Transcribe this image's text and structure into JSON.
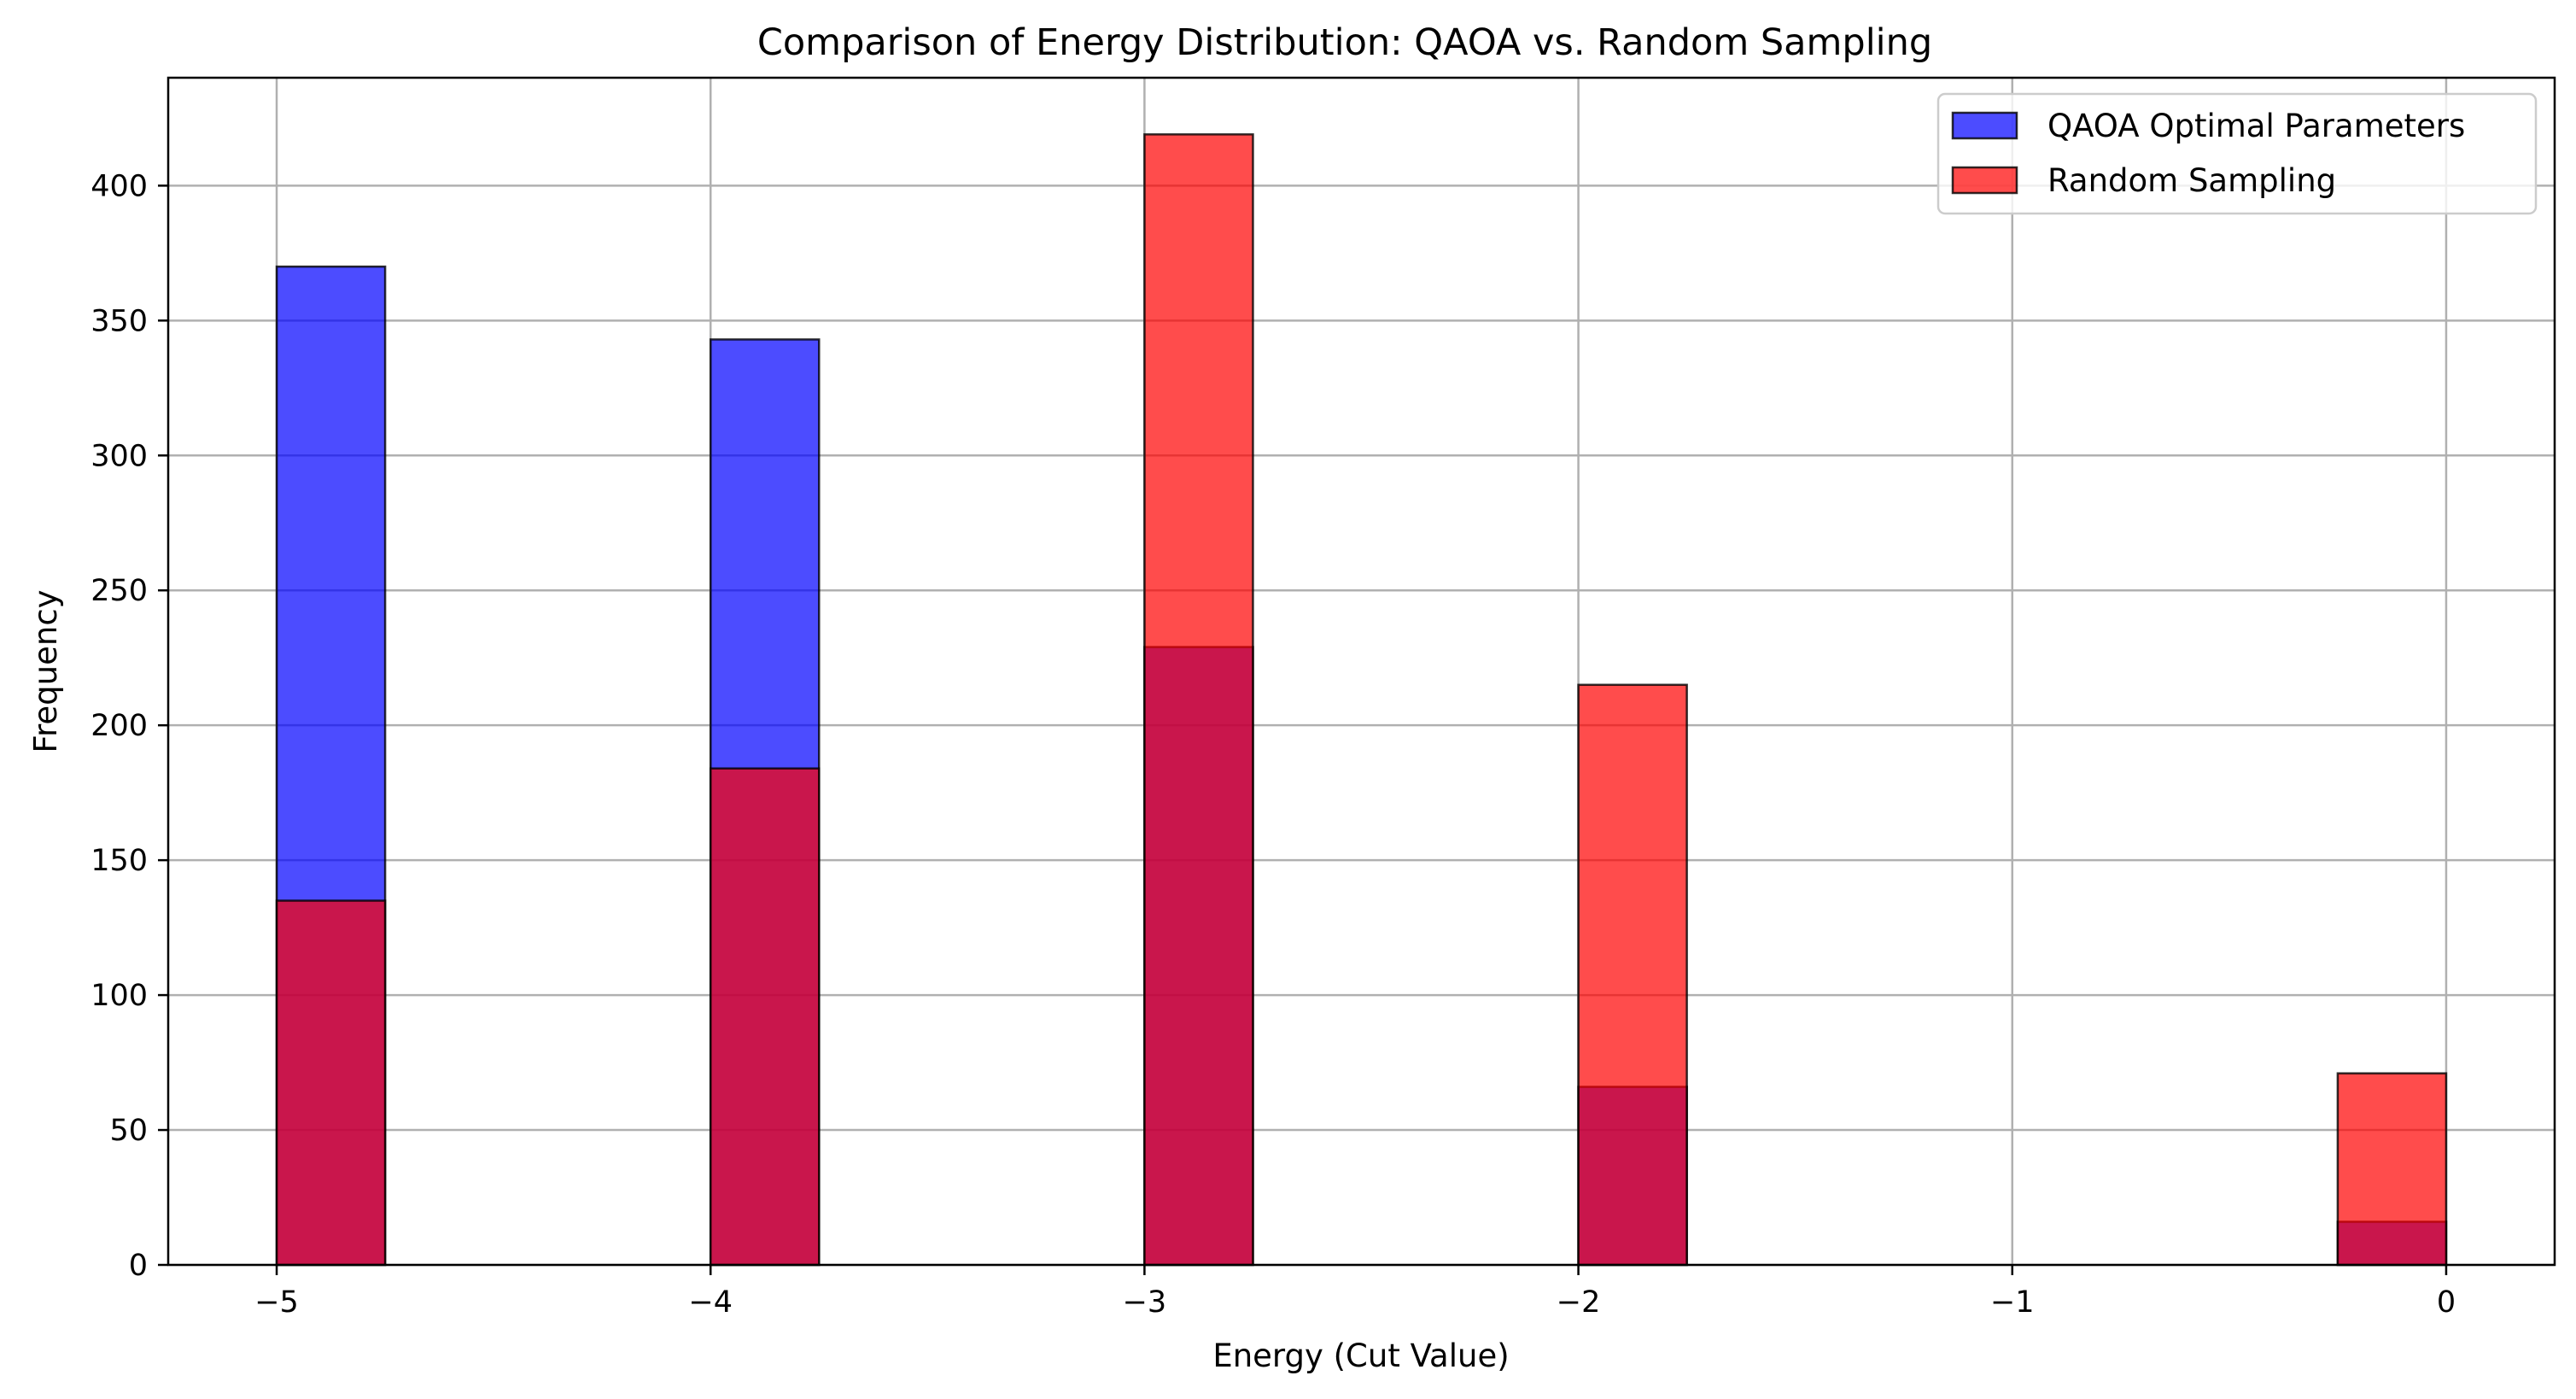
{
  "chart_data": {
    "type": "bar",
    "title": "Comparison of Energy Distribution: QAOA vs. Random Sampling",
    "xlabel": "Energy (Cut Value)",
    "ylabel": "Frequency",
    "xlim": [
      -5.25,
      0.25
    ],
    "ylim": [
      0,
      440
    ],
    "x_ticks": [
      -5,
      -4,
      -3,
      -2,
      -1,
      0
    ],
    "x_tick_labels": [
      "−5",
      "−4",
      "−3",
      "−2",
      "−1",
      "0"
    ],
    "y_ticks": [
      0,
      50,
      100,
      150,
      200,
      250,
      300,
      350,
      400
    ],
    "y_tick_labels": [
      "0",
      "50",
      "100",
      "150",
      "200",
      "250",
      "300",
      "350",
      "400"
    ],
    "grid": true,
    "legend_position": "top-right",
    "bin_width": 0.25,
    "series": [
      {
        "name": "QAOA Optimal Parameters",
        "color": "#0000ff",
        "bars": [
          {
            "bin_start": -5.0,
            "value": 370
          },
          {
            "bin_start": -4.0,
            "value": 343
          },
          {
            "bin_start": -3.0,
            "value": 229
          },
          {
            "bin_start": -2.0,
            "value": 66
          },
          {
            "bin_start": -0.25,
            "value": 16
          }
        ]
      },
      {
        "name": "Random Sampling",
        "color": "#ff0000",
        "bars": [
          {
            "bin_start": -5.0,
            "value": 135
          },
          {
            "bin_start": -4.0,
            "value": 184
          },
          {
            "bin_start": -3.0,
            "value": 419
          },
          {
            "bin_start": -2.0,
            "value": 215
          },
          {
            "bin_start": -0.25,
            "value": 71
          }
        ]
      }
    ]
  }
}
